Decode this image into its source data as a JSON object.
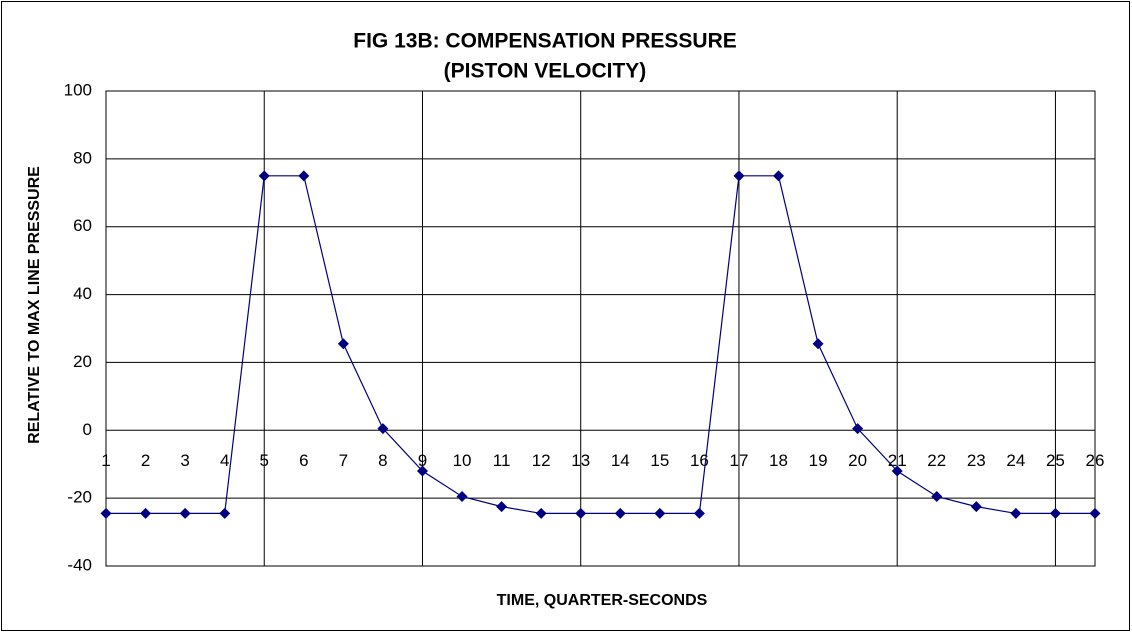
{
  "chart_data": {
    "type": "line",
    "title": "FIG 13B: COMPENSATION PRESSURE",
    "subtitle": "(PISTON VELOCITY)",
    "x_label": "TIME, QUARTER-SECONDS",
    "y_label": "RELATIVE TO MAX LINE PRESSURE",
    "x": [
      1,
      2,
      3,
      4,
      5,
      6,
      7,
      8,
      9,
      10,
      11,
      12,
      13,
      14,
      15,
      16,
      17,
      18,
      19,
      20,
      21,
      22,
      23,
      24,
      25,
      26
    ],
    "series": [
      {
        "name": "Compensation pressure",
        "color": "#000080",
        "values": [
          -24.5,
          -24.5,
          -24.5,
          -24.5,
          75,
          75,
          25.5,
          0.5,
          -12,
          -19.5,
          -22.5,
          -24.5,
          -24.5,
          -24.5,
          -24.5,
          -24.5,
          75,
          75,
          25.5,
          0.5,
          -12,
          -19.5,
          -22.5,
          -24.5,
          -24.5,
          -24.5
        ]
      }
    ],
    "xlim": [
      1,
      26
    ],
    "xticks": [
      1,
      2,
      3,
      4,
      5,
      6,
      7,
      8,
      9,
      10,
      11,
      12,
      13,
      14,
      15,
      16,
      17,
      18,
      19,
      20,
      21,
      22,
      23,
      24,
      25,
      26
    ],
    "xgrid": [
      5,
      9,
      13,
      17,
      21,
      25
    ],
    "ylim": [
      -40,
      100
    ],
    "yticks": [
      -40,
      -20,
      0,
      20,
      40,
      60,
      80,
      100
    ],
    "grid": true
  }
}
